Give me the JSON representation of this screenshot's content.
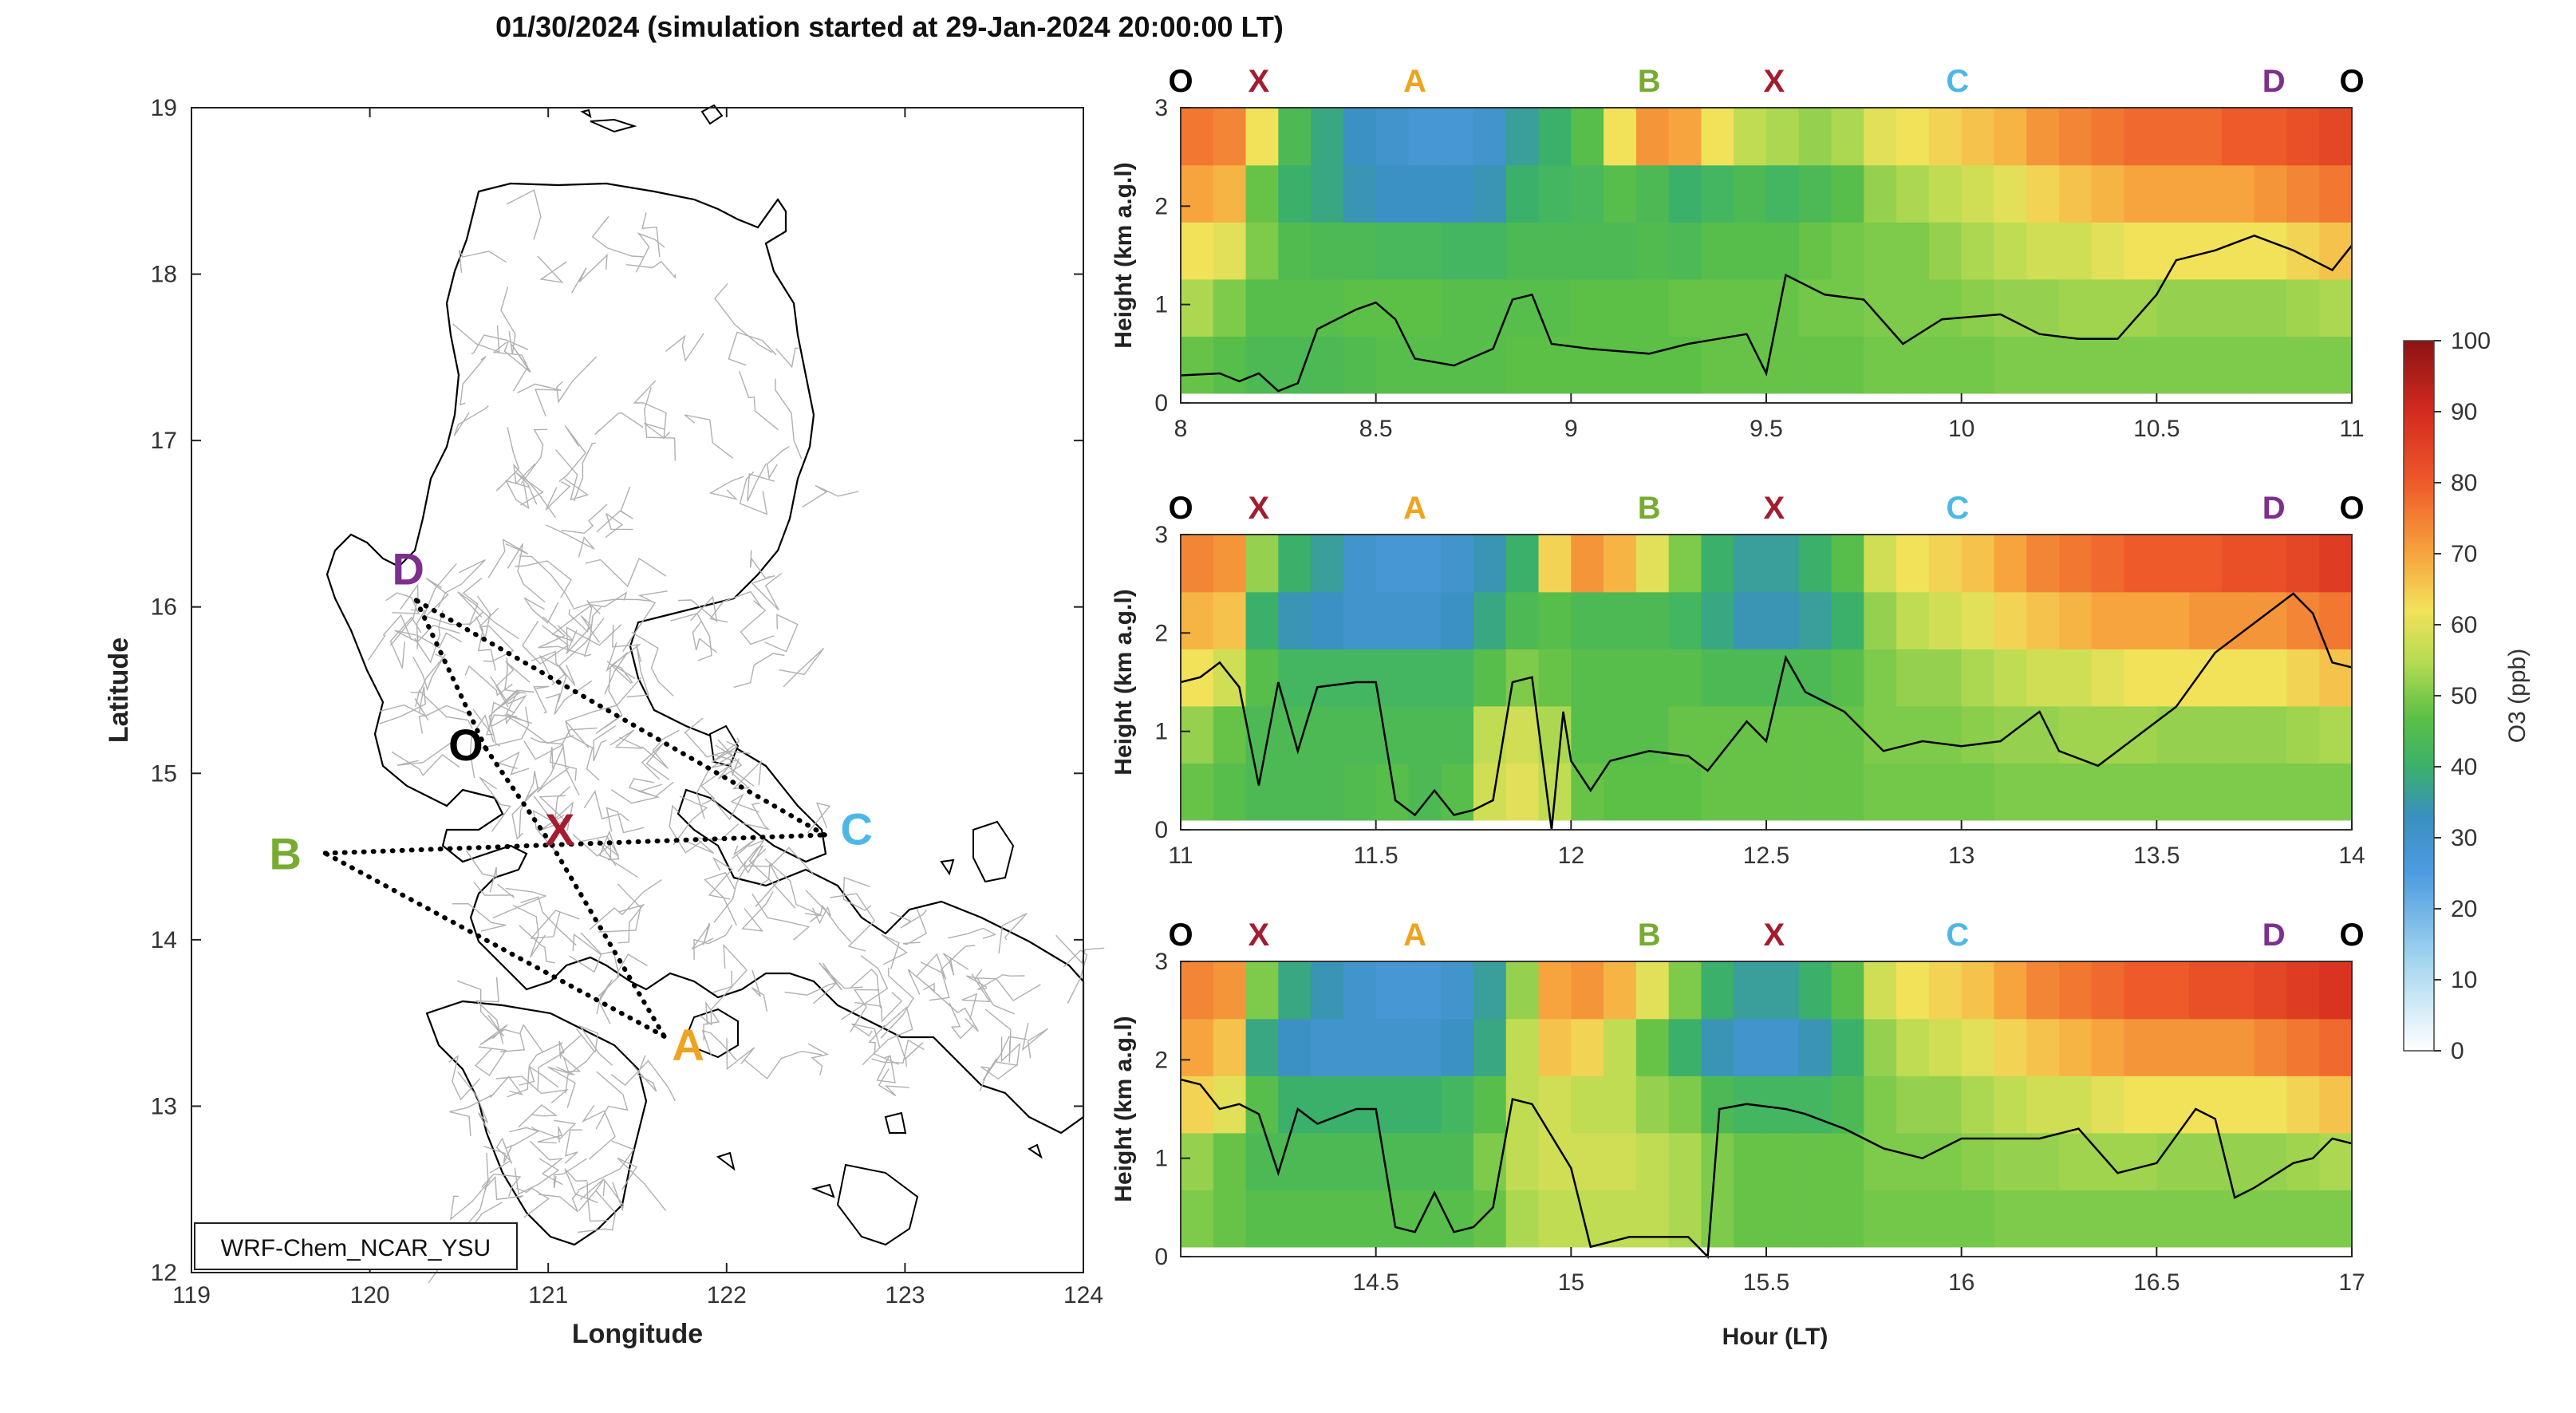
{
  "figure": {
    "title": "01/30/2024 (simulation started at 29-Jan-2024 20:00:00 LT)"
  },
  "colors": {
    "O": "#000000",
    "X": "#a51c30",
    "A": "#f0a31f",
    "B": "#77ac30",
    "C": "#4db8e8",
    "D": "#7e2f8e",
    "coast": "#000000",
    "admin": "#b0b0b0",
    "route": "#000000",
    "pbl_line": "#000000"
  },
  "chart_data": [
    {
      "type": "map",
      "xlabel": "Longitude",
      "ylabel": "Latitude",
      "xlim": [
        119,
        124
      ],
      "ylim": [
        12,
        19
      ],
      "xticks": [
        119,
        120,
        121,
        122,
        123,
        124
      ],
      "yticks": [
        12,
        13,
        14,
        15,
        16,
        17,
        18,
        19
      ],
      "model_label": "WRF-Chem_NCAR_YSU",
      "waypoints": [
        {
          "label": "D",
          "lon": 120.26,
          "lat": 16.04
        },
        {
          "label": "O",
          "lon": 120.65,
          "lat": 15.15
        },
        {
          "label": "X",
          "lon": 121.02,
          "lat": 14.57
        },
        {
          "label": "C",
          "lon": 122.55,
          "lat": 14.63
        },
        {
          "label": "B",
          "lon": 119.75,
          "lat": 14.52
        },
        {
          "label": "A",
          "lon": 121.65,
          "lat": 13.42
        }
      ],
      "route": [
        "O",
        "X",
        "A",
        "B",
        "X",
        "C",
        "D",
        "O"
      ]
    },
    {
      "type": "heatmap",
      "panel": "top",
      "ylabel": "Height (km a.g.l)",
      "xlim": [
        8,
        11
      ],
      "ylim": [
        0,
        3
      ],
      "xticks": [
        8,
        8.5,
        9,
        9.5,
        10,
        10.5,
        11
      ],
      "xtick_labels": [
        "8",
        "8.5",
        "9",
        "9.5",
        "10",
        "10.5",
        "11"
      ],
      "yticks": [
        0,
        1,
        2,
        3
      ],
      "leg_markers": [
        {
          "label": "O",
          "x": 8.0
        },
        {
          "label": "X",
          "x": 8.2
        },
        {
          "label": "A",
          "x": 8.6
        },
        {
          "label": "B",
          "x": 9.2
        },
        {
          "label": "X",
          "x": 9.52
        },
        {
          "label": "C",
          "x": 9.99
        },
        {
          "label": "D",
          "x": 10.8
        },
        {
          "label": "O",
          "x": 11.0
        }
      ],
      "pbl_height_km": [
        [
          8.0,
          0.28
        ],
        [
          8.1,
          0.3
        ],
        [
          8.15,
          0.22
        ],
        [
          8.2,
          0.3
        ],
        [
          8.25,
          0.12
        ],
        [
          8.3,
          0.2
        ],
        [
          8.35,
          0.75
        ],
        [
          8.45,
          0.95
        ],
        [
          8.5,
          1.02
        ],
        [
          8.55,
          0.85
        ],
        [
          8.6,
          0.45
        ],
        [
          8.7,
          0.38
        ],
        [
          8.8,
          0.55
        ],
        [
          8.85,
          1.05
        ],
        [
          8.9,
          1.1
        ],
        [
          8.95,
          0.6
        ],
        [
          9.05,
          0.55
        ],
        [
          9.2,
          0.5
        ],
        [
          9.3,
          0.6
        ],
        [
          9.45,
          0.7
        ],
        [
          9.5,
          0.3
        ],
        [
          9.55,
          1.3
        ],
        [
          9.65,
          1.1
        ],
        [
          9.75,
          1.05
        ],
        [
          9.85,
          0.6
        ],
        [
          9.95,
          0.85
        ],
        [
          10.1,
          0.9
        ],
        [
          10.2,
          0.7
        ],
        [
          10.3,
          0.65
        ],
        [
          10.4,
          0.65
        ],
        [
          10.5,
          1.1
        ],
        [
          10.55,
          1.45
        ],
        [
          10.65,
          1.55
        ],
        [
          10.75,
          1.7
        ],
        [
          10.85,
          1.55
        ],
        [
          10.95,
          1.35
        ],
        [
          11.0,
          1.6
        ]
      ],
      "o3_ppb_rows": [
        [
          48,
          46,
          44,
          44,
          44,
          45,
          46,
          46,
          46,
          46,
          47,
          47,
          47,
          47,
          47,
          47,
          48,
          48,
          48,
          48,
          48,
          49,
          49,
          49,
          49,
          50,
          50,
          50,
          50,
          50,
          50,
          50,
          50,
          50,
          50,
          50
        ],
        [
          54,
          50,
          46,
          46,
          46,
          47,
          47,
          47,
          46,
          46,
          46,
          46,
          47,
          47,
          47,
          48,
          48,
          48,
          48,
          49,
          49,
          50,
          50,
          50,
          51,
          52,
          52,
          53,
          53,
          53,
          52,
          52,
          52,
          52,
          53,
          54
        ],
        [
          62,
          60,
          50,
          45,
          44,
          44,
          43,
          43,
          42,
          42,
          44,
          44,
          44,
          44,
          45,
          44,
          46,
          46,
          46,
          48,
          49,
          50,
          50,
          52,
          54,
          56,
          58,
          58,
          60,
          62,
          62,
          62,
          62,
          62,
          64,
          66
        ],
        [
          70,
          68,
          48,
          40,
          38,
          34,
          32,
          32,
          32,
          34,
          40,
          42,
          43,
          46,
          44,
          40,
          42,
          44,
          42,
          44,
          46,
          52,
          54,
          56,
          58,
          60,
          64,
          66,
          68,
          70,
          70,
          70,
          70,
          72,
          74,
          76
        ],
        [
          76,
          74,
          62,
          44,
          38,
          32,
          30,
          28,
          28,
          30,
          36,
          40,
          46,
          62,
          72,
          70,
          62,
          56,
          54,
          52,
          54,
          60,
          62,
          64,
          66,
          68,
          72,
          74,
          76,
          78,
          78,
          78,
          80,
          80,
          82,
          84
        ]
      ]
    },
    {
      "type": "heatmap",
      "panel": "middle",
      "ylabel": "Height (km a.g.l)",
      "xlim": [
        11,
        14
      ],
      "ylim": [
        0,
        3
      ],
      "xticks": [
        11,
        11.5,
        12,
        12.5,
        13,
        13.5,
        14
      ],
      "xtick_labels": [
        "11",
        "11.5",
        "12",
        "12.5",
        "13",
        "13.5",
        "14"
      ],
      "yticks": [
        0,
        1,
        2,
        3
      ],
      "leg_markers": [
        {
          "label": "O",
          "x": 11.0
        },
        {
          "label": "X",
          "x": 11.2
        },
        {
          "label": "A",
          "x": 11.6
        },
        {
          "label": "B",
          "x": 12.2
        },
        {
          "label": "X",
          "x": 12.52
        },
        {
          "label": "C",
          "x": 12.99
        },
        {
          "label": "D",
          "x": 13.8
        },
        {
          "label": "O",
          "x": 14.0
        }
      ],
      "pbl_height_km": [
        [
          11.0,
          1.5
        ],
        [
          11.05,
          1.55
        ],
        [
          11.1,
          1.7
        ],
        [
          11.15,
          1.45
        ],
        [
          11.2,
          0.45
        ],
        [
          11.25,
          1.5
        ],
        [
          11.3,
          0.8
        ],
        [
          11.35,
          1.45
        ],
        [
          11.45,
          1.5
        ],
        [
          11.5,
          1.5
        ],
        [
          11.55,
          0.3
        ],
        [
          11.6,
          0.15
        ],
        [
          11.65,
          0.4
        ],
        [
          11.7,
          0.15
        ],
        [
          11.75,
          0.2
        ],
        [
          11.8,
          0.3
        ],
        [
          11.85,
          1.5
        ],
        [
          11.9,
          1.55
        ],
        [
          11.95,
          0.0
        ],
        [
          11.98,
          1.2
        ],
        [
          12.0,
          0.7
        ],
        [
          12.05,
          0.4
        ],
        [
          12.1,
          0.7
        ],
        [
          12.2,
          0.8
        ],
        [
          12.3,
          0.75
        ],
        [
          12.35,
          0.6
        ],
        [
          12.45,
          1.1
        ],
        [
          12.5,
          0.9
        ],
        [
          12.55,
          1.75
        ],
        [
          12.6,
          1.4
        ],
        [
          12.7,
          1.2
        ],
        [
          12.8,
          0.8
        ],
        [
          12.9,
          0.9
        ],
        [
          13.0,
          0.85
        ],
        [
          13.1,
          0.9
        ],
        [
          13.2,
          1.2
        ],
        [
          13.25,
          0.8
        ],
        [
          13.35,
          0.65
        ],
        [
          13.45,
          0.95
        ],
        [
          13.55,
          1.25
        ],
        [
          13.65,
          1.8
        ],
        [
          13.75,
          2.1
        ],
        [
          13.85,
          2.4
        ],
        [
          13.9,
          2.2
        ],
        [
          13.95,
          1.7
        ],
        [
          14.0,
          1.65
        ]
      ],
      "o3_ppb_rows": [
        [
          48,
          46,
          44,
          44,
          44,
          45,
          46,
          44,
          46,
          58,
          60,
          56,
          48,
          47,
          47,
          47,
          48,
          48,
          48,
          48,
          48,
          49,
          49,
          49,
          49,
          50,
          50,
          50,
          50,
          50,
          50,
          50,
          50,
          50,
          50,
          50
        ],
        [
          52,
          48,
          44,
          44,
          44,
          44,
          44,
          44,
          44,
          56,
          58,
          54,
          46,
          46,
          46,
          48,
          48,
          48,
          48,
          48,
          48,
          50,
          50,
          50,
          51,
          52,
          52,
          53,
          53,
          53,
          52,
          52,
          52,
          52,
          53,
          54
        ],
        [
          62,
          58,
          46,
          42,
          42,
          42,
          42,
          42,
          42,
          46,
          50,
          48,
          46,
          46,
          46,
          46,
          44,
          44,
          44,
          44,
          46,
          50,
          52,
          52,
          54,
          56,
          58,
          58,
          60,
          62,
          62,
          62,
          62,
          62,
          64,
          66
        ],
        [
          68,
          66,
          40,
          34,
          32,
          30,
          30,
          30,
          32,
          38,
          44,
          46,
          44,
          44,
          44,
          42,
          38,
          34,
          34,
          36,
          40,
          52,
          56,
          58,
          60,
          64,
          66,
          68,
          70,
          70,
          70,
          72,
          72,
          72,
          74,
          76
        ],
        [
          74,
          72,
          52,
          40,
          36,
          30,
          28,
          28,
          30,
          34,
          40,
          64,
          72,
          68,
          60,
          50,
          40,
          36,
          36,
          40,
          46,
          58,
          62,
          64,
          66,
          70,
          74,
          76,
          78,
          80,
          80,
          80,
          82,
          82,
          84,
          86
        ]
      ]
    },
    {
      "type": "heatmap",
      "panel": "bottom",
      "xlabel": "Hour (LT)",
      "ylabel": "Height (km a.g.l)",
      "xlim": [
        14,
        17
      ],
      "ylim": [
        0,
        3
      ],
      "xticks": [
        14.5,
        15,
        15.5,
        16,
        16.5,
        17
      ],
      "xtick_labels": [
        "14.5",
        "15",
        "15.5",
        "16",
        "16.5",
        "17"
      ],
      "yticks": [
        0,
        1,
        2,
        3
      ],
      "leg_markers": [
        {
          "label": "O",
          "x": 14.0
        },
        {
          "label": "X",
          "x": 14.2
        },
        {
          "label": "A",
          "x": 14.6
        },
        {
          "label": "B",
          "x": 15.2
        },
        {
          "label": "X",
          "x": 15.52
        },
        {
          "label": "C",
          "x": 15.99
        },
        {
          "label": "D",
          "x": 16.8
        },
        {
          "label": "O",
          "x": 17.0
        }
      ],
      "pbl_height_km": [
        [
          14.0,
          1.8
        ],
        [
          14.05,
          1.75
        ],
        [
          14.1,
          1.5
        ],
        [
          14.15,
          1.55
        ],
        [
          14.2,
          1.45
        ],
        [
          14.25,
          0.85
        ],
        [
          14.3,
          1.5
        ],
        [
          14.35,
          1.35
        ],
        [
          14.45,
          1.5
        ],
        [
          14.5,
          1.5
        ],
        [
          14.55,
          0.3
        ],
        [
          14.6,
          0.25
        ],
        [
          14.65,
          0.65
        ],
        [
          14.7,
          0.25
        ],
        [
          14.75,
          0.3
        ],
        [
          14.8,
          0.5
        ],
        [
          14.85,
          1.6
        ],
        [
          14.9,
          1.55
        ],
        [
          15.0,
          0.9
        ],
        [
          15.05,
          0.1
        ],
        [
          15.1,
          0.15
        ],
        [
          15.15,
          0.2
        ],
        [
          15.3,
          0.2
        ],
        [
          15.35,
          0.0
        ],
        [
          15.38,
          1.5
        ],
        [
          15.45,
          1.55
        ],
        [
          15.55,
          1.5
        ],
        [
          15.6,
          1.45
        ],
        [
          15.7,
          1.3
        ],
        [
          15.8,
          1.1
        ],
        [
          15.9,
          1.0
        ],
        [
          16.0,
          1.2
        ],
        [
          16.1,
          1.2
        ],
        [
          16.2,
          1.2
        ],
        [
          16.3,
          1.3
        ],
        [
          16.4,
          0.85
        ],
        [
          16.5,
          0.95
        ],
        [
          16.6,
          1.5
        ],
        [
          16.65,
          1.4
        ],
        [
          16.7,
          0.6
        ],
        [
          16.75,
          0.7
        ],
        [
          16.85,
          0.95
        ],
        [
          16.9,
          1.0
        ],
        [
          16.95,
          1.2
        ],
        [
          17.0,
          1.15
        ]
      ],
      "o3_ppb_rows": [
        [
          50,
          48,
          46,
          46,
          46,
          46,
          46,
          46,
          46,
          48,
          54,
          56,
          56,
          56,
          56,
          54,
          50,
          48,
          48,
          48,
          48,
          49,
          49,
          49,
          49,
          50,
          50,
          50,
          50,
          50,
          50,
          50,
          50,
          50,
          50,
          50
        ],
        [
          52,
          48,
          44,
          44,
          44,
          44,
          44,
          44,
          44,
          50,
          56,
          58,
          58,
          58,
          56,
          54,
          50,
          48,
          48,
          48,
          48,
          50,
          50,
          50,
          51,
          52,
          52,
          53,
          53,
          53,
          52,
          52,
          52,
          52,
          53,
          54
        ],
        [
          64,
          60,
          46,
          40,
          40,
          40,
          40,
          40,
          42,
          46,
          56,
          58,
          56,
          56,
          52,
          50,
          44,
          42,
          42,
          42,
          44,
          50,
          52,
          52,
          54,
          56,
          58,
          58,
          60,
          62,
          62,
          62,
          62,
          62,
          64,
          66
        ],
        [
          70,
          66,
          38,
          32,
          30,
          30,
          30,
          30,
          32,
          38,
          56,
          66,
          64,
          56,
          48,
          40,
          34,
          30,
          30,
          34,
          40,
          52,
          56,
          58,
          60,
          64,
          66,
          68,
          70,
          72,
          72,
          72,
          72,
          74,
          76,
          78
        ],
        [
          74,
          72,
          50,
          38,
          34,
          30,
          28,
          28,
          30,
          36,
          52,
          70,
          72,
          68,
          60,
          50,
          40,
          36,
          36,
          40,
          46,
          58,
          62,
          64,
          66,
          70,
          74,
          76,
          78,
          80,
          80,
          82,
          82,
          84,
          86,
          88
        ]
      ]
    },
    {
      "type": "colorbar",
      "label": "O3 (ppb)",
      "range": [
        0,
        100
      ],
      "ticks": [
        0,
        10,
        20,
        30,
        40,
        50,
        60,
        70,
        80,
        90,
        100
      ]
    }
  ]
}
